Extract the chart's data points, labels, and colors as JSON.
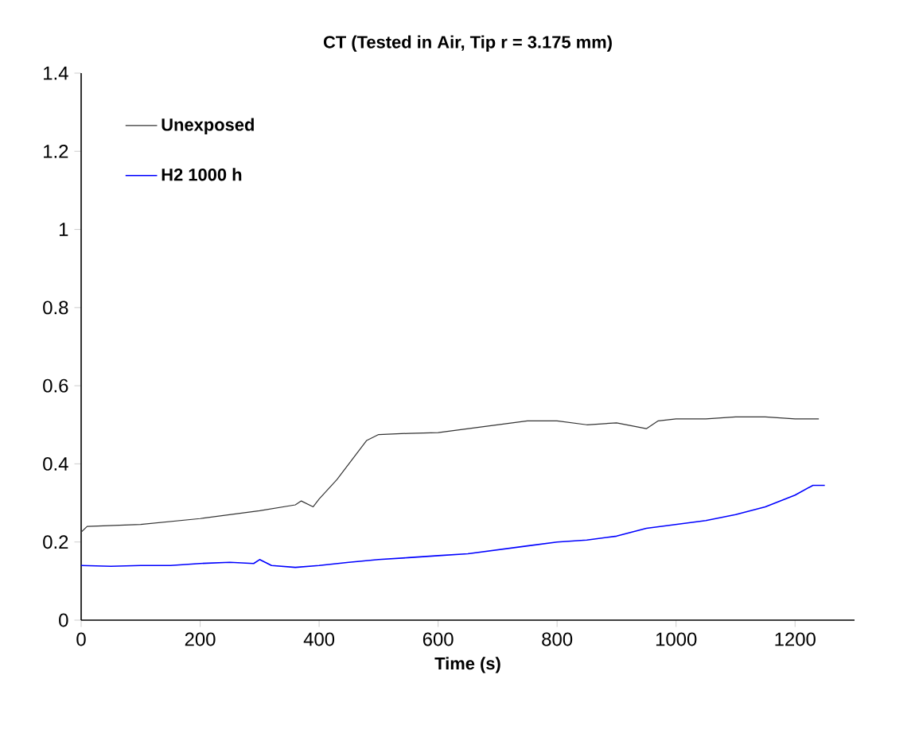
{
  "chart_data": {
    "type": "line",
    "title": "CT (Tested in Air, Tip r = 3.175 mm)",
    "xlabel": "Time (s)",
    "xlim": [
      0,
      1300
    ],
    "xticks": [
      0,
      200,
      400,
      600,
      800,
      1000,
      1200
    ],
    "ylim": [
      0,
      1.4
    ],
    "yticks": [
      0,
      0.2,
      0.4,
      0.6,
      0.8,
      1,
      1.2,
      1.4
    ],
    "legend": "top left",
    "grid": false,
    "marker": "none",
    "series": [
      {
        "name": "Unexposed",
        "color": "#333333",
        "x": [
          0,
          10,
          100,
          200,
          300,
          360,
          370,
          390,
          400,
          430,
          450,
          480,
          500,
          550,
          600,
          650,
          700,
          750,
          800,
          850,
          900,
          950,
          970,
          1000,
          1050,
          1100,
          1150,
          1200,
          1240
        ],
        "values": [
          0.225,
          0.24,
          0.245,
          0.26,
          0.28,
          0.295,
          0.305,
          0.29,
          0.31,
          0.36,
          0.4,
          0.46,
          0.475,
          0.478,
          0.48,
          0.49,
          0.5,
          0.51,
          0.51,
          0.5,
          0.505,
          0.49,
          0.51,
          0.515,
          0.515,
          0.52,
          0.52,
          0.515,
          0.515
        ]
      },
      {
        "name": "H2 1000 h",
        "color": "#0000ff",
        "x": [
          0,
          50,
          100,
          150,
          200,
          250,
          290,
          300,
          320,
          360,
          400,
          450,
          500,
          550,
          600,
          650,
          700,
          750,
          800,
          850,
          900,
          950,
          1000,
          1050,
          1100,
          1150,
          1200,
          1230,
          1250
        ],
        "values": [
          0.14,
          0.138,
          0.14,
          0.14,
          0.145,
          0.148,
          0.145,
          0.155,
          0.14,
          0.135,
          0.14,
          0.148,
          0.155,
          0.16,
          0.165,
          0.17,
          0.18,
          0.19,
          0.2,
          0.205,
          0.215,
          0.235,
          0.245,
          0.255,
          0.27,
          0.29,
          0.32,
          0.345,
          0.345
        ]
      }
    ]
  }
}
